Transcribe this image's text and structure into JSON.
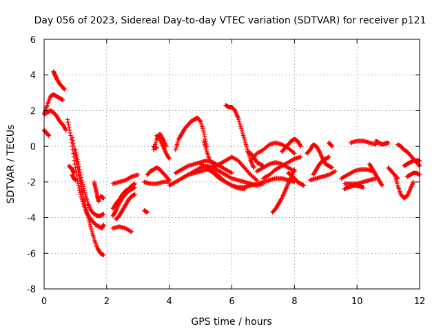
{
  "chart_data": {
    "type": "scatter",
    "title": "Day 056 of 2023, Sidereal Day-to-day VTEC variation (SDTVAR) for receiver p121",
    "xlabel": "GPS time / hours",
    "ylabel": "SDTVAR / TECUs",
    "xlim": [
      0,
      12
    ],
    "ylim": [
      -8,
      6
    ],
    "xticks": [
      0,
      2,
      4,
      6,
      8,
      10,
      12
    ],
    "yticks": [
      -8,
      -6,
      -4,
      -2,
      0,
      2,
      4,
      6
    ],
    "grid": true,
    "marker": "+",
    "colors": {
      "series": "#ff0000",
      "grid": "#a0a0a0",
      "axis": "#000000"
    },
    "series_segments": [
      {
        "name": "arc-1",
        "x": [
          0.0,
          0.1,
          0.2,
          0.3,
          0.4,
          0.5,
          0.6
        ],
        "y": [
          1.8,
          2.3,
          2.8,
          2.9,
          2.8,
          2.7,
          2.6
        ]
      },
      {
        "name": "arc-2",
        "x": [
          0.0,
          0.1,
          0.2,
          0.3,
          0.4,
          0.5,
          0.6,
          0.7
        ],
        "y": [
          1.8,
          1.9,
          2.0,
          1.9,
          1.7,
          1.4,
          1.2,
          0.9
        ]
      },
      {
        "name": "arc-3",
        "x": [
          0.0,
          0.05,
          0.1,
          0.15
        ],
        "y": [
          0.9,
          0.8,
          0.7,
          0.6
        ]
      },
      {
        "name": "arc-4",
        "x": [
          0.3,
          0.35,
          0.4,
          0.5,
          0.6,
          0.65
        ],
        "y": [
          4.2,
          4.0,
          3.8,
          3.5,
          3.3,
          3.2
        ]
      },
      {
        "name": "arc-5",
        "x": [
          0.75,
          0.85,
          0.95,
          1.05,
          1.15,
          1.25,
          1.35,
          1.45,
          1.55,
          1.65,
          1.75,
          1.85,
          1.9
        ],
        "y": [
          1.5,
          0.6,
          -0.6,
          -1.8,
          -2.6,
          -3.2,
          -3.7,
          -4.0,
          -4.2,
          -4.4,
          -4.5,
          -4.6,
          -4.4
        ]
      },
      {
        "name": "arc-6",
        "x": [
          0.9,
          1.0,
          1.1,
          1.2,
          1.3,
          1.4,
          1.5,
          1.6,
          1.7,
          1.8,
          1.9
        ],
        "y": [
          0.5,
          -0.5,
          -1.5,
          -2.4,
          -3.2,
          -3.9,
          -4.6,
          -5.2,
          -5.7,
          -6.0,
          -6.1
        ]
      },
      {
        "name": "arc-7",
        "x": [
          1.0,
          1.1,
          1.2,
          1.3,
          1.4,
          1.5,
          1.6,
          1.7,
          1.8,
          1.9
        ],
        "y": [
          -0.2,
          -1.0,
          -1.9,
          -2.6,
          -3.2,
          -3.6,
          -3.8,
          -3.9,
          -3.9,
          -3.8
        ]
      },
      {
        "name": "arc-8",
        "x": [
          0.8,
          0.85,
          0.9,
          0.95
        ],
        "y": [
          -1.1,
          -1.2,
          -1.3,
          -1.5
        ]
      },
      {
        "name": "arc-9",
        "x": [
          0.9,
          0.95,
          1.0
        ],
        "y": [
          -1.6,
          -1.8,
          -1.9
        ]
      },
      {
        "name": "arc-10",
        "x": [
          1.6,
          1.65,
          1.7,
          1.75
        ],
        "y": [
          -2.0,
          -2.4,
          -2.8,
          -3.1
        ]
      },
      {
        "name": "arc-11",
        "x": [
          1.8,
          1.85,
          1.9
        ],
        "y": [
          -2.8,
          -2.85,
          -2.9
        ]
      },
      {
        "name": "arc-12",
        "x": [
          2.2,
          2.4,
          2.6,
          2.8,
          3.0
        ],
        "y": [
          -2.1,
          -2.0,
          -1.9,
          -1.7,
          -1.6
        ]
      },
      {
        "name": "arc-13",
        "x": [
          2.2,
          2.3,
          2.4,
          2.5,
          2.6,
          2.7,
          2.8,
          2.9
        ],
        "y": [
          -3.9,
          -3.6,
          -3.2,
          -2.9,
          -2.7,
          -2.5,
          -2.4,
          -2.3
        ]
      },
      {
        "name": "arc-14",
        "x": [
          2.2,
          2.3,
          2.4,
          2.5,
          2.6,
          2.7,
          2.8,
          2.9
        ],
        "y": [
          -3.5,
          -3.2,
          -3.0,
          -2.7,
          -2.5,
          -2.4,
          -2.2,
          -2.1
        ]
      },
      {
        "name": "arc-15",
        "x": [
          2.3,
          2.4,
          2.5,
          2.6,
          2.7,
          2.8,
          2.9
        ],
        "y": [
          -4.1,
          -3.9,
          -3.6,
          -3.3,
          -3.0,
          -2.8,
          -2.7
        ]
      },
      {
        "name": "arc-16",
        "x": [
          2.2,
          2.4,
          2.6,
          2.8
        ],
        "y": [
          -4.6,
          -4.5,
          -4.6,
          -4.8
        ]
      },
      {
        "name": "arc-17",
        "x": [
          3.2,
          3.25,
          3.3
        ],
        "y": [
          -3.6,
          -3.65,
          -3.7
        ]
      },
      {
        "name": "arc-18",
        "x": [
          3.2,
          3.4,
          3.6,
          3.8,
          4.0
        ],
        "y": [
          -2.0,
          -2.1,
          -2.1,
          -2.0,
          -2.0
        ]
      },
      {
        "name": "arc-19",
        "x": [
          3.3,
          3.4,
          3.5,
          3.6,
          3.7,
          3.8,
          3.9,
          4.0
        ],
        "y": [
          -1.6,
          -1.4,
          -1.3,
          -1.2,
          -1.3,
          -1.5,
          -1.7,
          -1.9
        ]
      },
      {
        "name": "arc-20",
        "x": [
          3.5,
          3.6,
          3.7,
          3.8,
          3.9
        ],
        "y": [
          -0.2,
          0.4,
          0.7,
          0.4,
          0.0
        ]
      },
      {
        "name": "arc-21",
        "x": [
          3.6,
          3.7,
          3.8,
          3.9,
          4.0
        ],
        "y": [
          0.6,
          0.4,
          0.0,
          -0.4,
          -0.7
        ]
      },
      {
        "name": "arc-22",
        "x": [
          3.6,
          3.55,
          3.5
        ],
        "y": [
          -0.1,
          -0.05,
          0.0
        ]
      },
      {
        "name": "arc-23",
        "x": [
          4.0,
          4.2,
          4.4,
          4.6,
          4.8,
          5.0,
          5.2,
          5.4,
          5.6,
          5.8,
          6.0
        ],
        "y": [
          -2.2,
          -2.0,
          -1.8,
          -1.6,
          -1.5,
          -1.4,
          -1.3,
          -1.2,
          -1.0,
          -0.8,
          -0.6
        ]
      },
      {
        "name": "arc-24",
        "x": [
          4.2,
          4.3,
          4.4,
          4.5,
          4.6,
          4.7,
          4.8,
          4.9,
          5.0,
          5.1,
          5.2
        ],
        "y": [
          -0.2,
          0.4,
          0.7,
          1.0,
          1.2,
          1.4,
          1.5,
          1.6,
          1.4,
          0.8,
          0.0
        ]
      },
      {
        "name": "arc-25",
        "x": [
          5.1,
          5.2,
          5.3,
          5.4,
          5.5
        ],
        "y": [
          0.3,
          -0.3,
          -0.8,
          -1.0,
          -1.1
        ]
      },
      {
        "name": "arc-26",
        "x": [
          4.2,
          4.4,
          4.6,
          4.8,
          5.0,
          5.2,
          5.4,
          5.6,
          5.8,
          6.0
        ],
        "y": [
          -1.5,
          -1.3,
          -1.1,
          -1.0,
          -0.9,
          -0.8,
          -0.9,
          -1.1,
          -1.3,
          -1.5
        ]
      },
      {
        "name": "arc-27",
        "x": [
          4.4,
          4.6,
          4.8,
          5.0,
          5.2,
          5.4,
          5.6,
          5.8,
          6.0,
          6.2,
          6.4,
          6.6,
          6.8,
          7.0
        ],
        "y": [
          -1.8,
          -1.6,
          -1.4,
          -1.2,
          -1.1,
          -1.2,
          -1.4,
          -1.6,
          -1.8,
          -1.9,
          -2.0,
          -2.1,
          -2.2,
          -2.1
        ]
      },
      {
        "name": "arc-28",
        "x": [
          5.0,
          5.2,
          5.4,
          5.6,
          5.8,
          6.0,
          6.2,
          6.4,
          6.6,
          6.8,
          7.0,
          7.2,
          7.4,
          7.6,
          7.8,
          8.0
        ],
        "y": [
          -1.0,
          -1.2,
          -1.5,
          -1.8,
          -2.0,
          -2.2,
          -2.3,
          -2.3,
          -2.2,
          -2.1,
          -2.0,
          -1.9,
          -1.8,
          -1.8,
          -1.9,
          -2.0
        ]
      },
      {
        "name": "arc-29",
        "x": [
          5.2,
          5.4,
          5.6,
          5.8,
          6.0,
          6.2,
          6.4
        ],
        "y": [
          -1.3,
          -1.4,
          -1.7,
          -2.0,
          -2.2,
          -2.35,
          -2.4
        ]
      },
      {
        "name": "arc-30",
        "x": [
          5.8,
          5.9,
          6.0,
          6.1,
          6.2,
          6.3,
          6.4,
          6.5,
          6.6,
          6.7
        ],
        "y": [
          2.3,
          2.2,
          2.2,
          2.0,
          1.6,
          1.0,
          0.4,
          -0.2,
          -0.8,
          -1.2
        ]
      },
      {
        "name": "arc-31",
        "x": [
          6.0,
          6.2,
          6.4,
          6.6,
          6.8
        ],
        "y": [
          -0.6,
          -0.8,
          -1.2,
          -1.6,
          -1.9
        ]
      },
      {
        "name": "arc-32",
        "x": [
          6.6,
          6.8,
          7.0,
          7.2,
          7.4,
          7.6,
          7.8,
          8.0
        ],
        "y": [
          -0.8,
          -0.4,
          -0.2,
          0.1,
          0.2,
          0.1,
          -0.1,
          -0.4
        ]
      },
      {
        "name": "arc-33",
        "x": [
          6.5,
          6.6,
          6.7,
          6.8,
          6.9,
          7.0
        ],
        "y": [
          -0.3,
          -0.4,
          -0.6,
          -0.9,
          -1.0,
          -1.1
        ]
      },
      {
        "name": "arc-34",
        "x": [
          6.8,
          7.0,
          7.2,
          7.4,
          7.6,
          7.8,
          8.0
        ],
        "y": [
          -1.4,
          -1.2,
          -1.0,
          -0.9,
          -1.0,
          -1.2,
          -1.4
        ]
      },
      {
        "name": "arc-35",
        "x": [
          7.0,
          7.2,
          7.4,
          7.6,
          7.8,
          8.0,
          8.2
        ],
        "y": [
          -1.8,
          -1.6,
          -1.3,
          -1.1,
          -0.9,
          -0.7,
          -0.6
        ]
      },
      {
        "name": "arc-36",
        "x": [
          7.3,
          7.4,
          7.5,
          7.6,
          7.7,
          7.8,
          7.9,
          8.0
        ],
        "y": [
          -3.7,
          -3.5,
          -3.2,
          -2.9,
          -2.5,
          -2.1,
          -1.7,
          -1.3
        ]
      },
      {
        "name": "arc-37",
        "x": [
          7.8,
          7.9,
          8.0,
          8.1,
          8.2,
          8.3
        ],
        "y": [
          -1.5,
          -1.6,
          -1.8,
          -2.0,
          -2.1,
          -2.2
        ]
      },
      {
        "name": "arc-38",
        "x": [
          7.6,
          7.7,
          7.8,
          7.9,
          8.0,
          8.1,
          8.2
        ],
        "y": [
          -0.3,
          -0.1,
          0.1,
          0.3,
          0.4,
          0.3,
          0.0
        ]
      },
      {
        "name": "arc-39",
        "x": [
          8.4,
          8.5,
          8.6,
          8.7,
          8.8,
          8.9,
          9.0,
          9.1,
          9.2
        ],
        "y": [
          -0.4,
          -0.2,
          0.1,
          0.0,
          -0.3,
          -0.7,
          -1.0,
          -1.1,
          -1.2
        ]
      },
      {
        "name": "arc-40",
        "x": [
          8.5,
          8.7,
          8.9,
          9.1,
          9.3
        ],
        "y": [
          -1.9,
          -1.8,
          -1.7,
          -1.6,
          -1.4
        ]
      },
      {
        "name": "arc-41",
        "x": [
          8.6,
          8.7,
          8.8,
          8.9,
          9.0,
          9.1
        ],
        "y": [
          -1.6,
          -1.3,
          -1.0,
          -0.8,
          -0.7,
          -0.6
        ]
      },
      {
        "name": "arc-42",
        "x": [
          9.1,
          9.15,
          9.2
        ],
        "y": [
          0.2,
          0.1,
          0.0
        ]
      },
      {
        "name": "arc-43",
        "x": [
          9.8,
          10.0,
          10.2,
          10.4,
          10.6
        ],
        "y": [
          0.2,
          0.3,
          0.3,
          0.2,
          0.1
        ]
      },
      {
        "name": "arc-44",
        "x": [
          9.5,
          9.7,
          9.9,
          10.1,
          10.3,
          10.5
        ],
        "y": [
          -1.8,
          -1.6,
          -1.4,
          -1.3,
          -1.3,
          -1.4
        ]
      },
      {
        "name": "arc-45",
        "x": [
          9.6,
          9.8,
          10.0,
          10.2,
          10.4,
          10.6
        ],
        "y": [
          -2.1,
          -2.1,
          -2.1,
          -2.0,
          -1.9,
          -1.8
        ]
      },
      {
        "name": "arc-46",
        "x": [
          9.6,
          9.7,
          9.8,
          9.9,
          10.0,
          10.1,
          10.2
        ],
        "y": [
          -2.4,
          -2.3,
          -2.25,
          -2.2,
          -2.2,
          -2.25,
          -2.3
        ]
      },
      {
        "name": "arc-47",
        "x": [
          10.4,
          10.5,
          10.6,
          10.7,
          10.8
        ],
        "y": [
          -1.0,
          -1.3,
          -1.6,
          -1.9,
          -2.2
        ]
      },
      {
        "name": "arc-48",
        "x": [
          10.6,
          10.7,
          10.8,
          10.9,
          11.0
        ],
        "y": [
          0.3,
          0.2,
          0.1,
          0.15,
          0.2
        ]
      },
      {
        "name": "arc-49",
        "x": [
          11.0,
          11.1,
          11.2,
          11.3
        ],
        "y": [
          -1.2,
          -1.4,
          -1.6,
          -1.8
        ]
      },
      {
        "name": "arc-50",
        "x": [
          11.2,
          11.3,
          11.4,
          11.5,
          11.6,
          11.7,
          11.8
        ],
        "y": [
          -1.6,
          -2.2,
          -2.7,
          -2.9,
          -2.8,
          -2.4,
          -2.0
        ]
      },
      {
        "name": "arc-51",
        "x": [
          11.3,
          11.4,
          11.5,
          11.6,
          11.7,
          11.8,
          11.9,
          12.0
        ],
        "y": [
          0.1,
          0.0,
          -0.2,
          -0.3,
          -0.5,
          -0.7,
          -0.9,
          -1.1
        ]
      },
      {
        "name": "arc-52",
        "x": [
          11.5,
          11.6,
          11.7,
          11.8,
          11.9,
          12.0
        ],
        "y": [
          -1.1,
          -1.0,
          -0.9,
          -0.8,
          -0.8,
          -0.8
        ]
      },
      {
        "name": "arc-53",
        "x": [
          11.6,
          11.7,
          11.8,
          11.9,
          12.0
        ],
        "y": [
          -1.7,
          -1.6,
          -1.5,
          -1.5,
          -1.6
        ]
      }
    ]
  }
}
